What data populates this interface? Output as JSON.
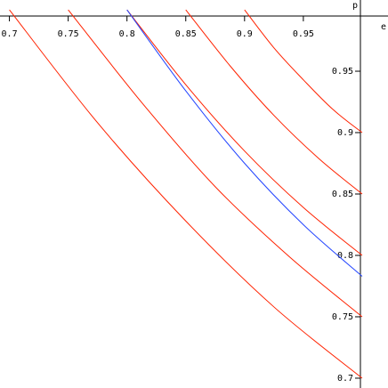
{
  "chart_data": {
    "type": "line",
    "x_label": "e",
    "y_label": "p",
    "xlim": [
      0.692,
      1.022
    ],
    "ylim": [
      0.692,
      1.008
    ],
    "xticks": [
      0.7,
      0.75,
      0.8,
      0.85,
      0.9,
      0.95
    ],
    "yticks": [
      0.7,
      0.75,
      0.8,
      0.85,
      0.9,
      0.95
    ],
    "series": [
      {
        "color": "#ff2200",
        "x": [
          0.7,
          0.775,
          0.85,
          0.925,
          1.0
        ],
        "values": [
          1.0,
          0.908,
          0.828,
          0.758,
          0.7
        ]
      },
      {
        "color": "#ff2200",
        "x": [
          0.75,
          0.813,
          0.875,
          0.938,
          1.0
        ],
        "values": [
          1.0,
          0.924,
          0.856,
          0.799,
          0.75
        ]
      },
      {
        "color": "#ff2200",
        "x": [
          0.8,
          0.85,
          0.9,
          0.95,
          1.0
        ],
        "values": [
          1.0,
          0.939,
          0.885,
          0.839,
          0.8
        ]
      },
      {
        "color": "#ff2200",
        "x": [
          0.85,
          0.888,
          0.925,
          0.963,
          1.0
        ],
        "values": [
          1.0,
          0.954,
          0.914,
          0.879,
          0.85
        ]
      },
      {
        "color": "#ff2200",
        "x": [
          0.9,
          0.925,
          0.95,
          0.975,
          1.0
        ],
        "values": [
          1.0,
          0.969,
          0.943,
          0.919,
          0.9
        ]
      },
      {
        "color": "#2244ff",
        "x": [
          0.8,
          0.85,
          0.9,
          0.95,
          1.0
        ],
        "values": [
          1.0,
          0.934,
          0.875,
          0.825,
          0.783
        ]
      }
    ]
  }
}
